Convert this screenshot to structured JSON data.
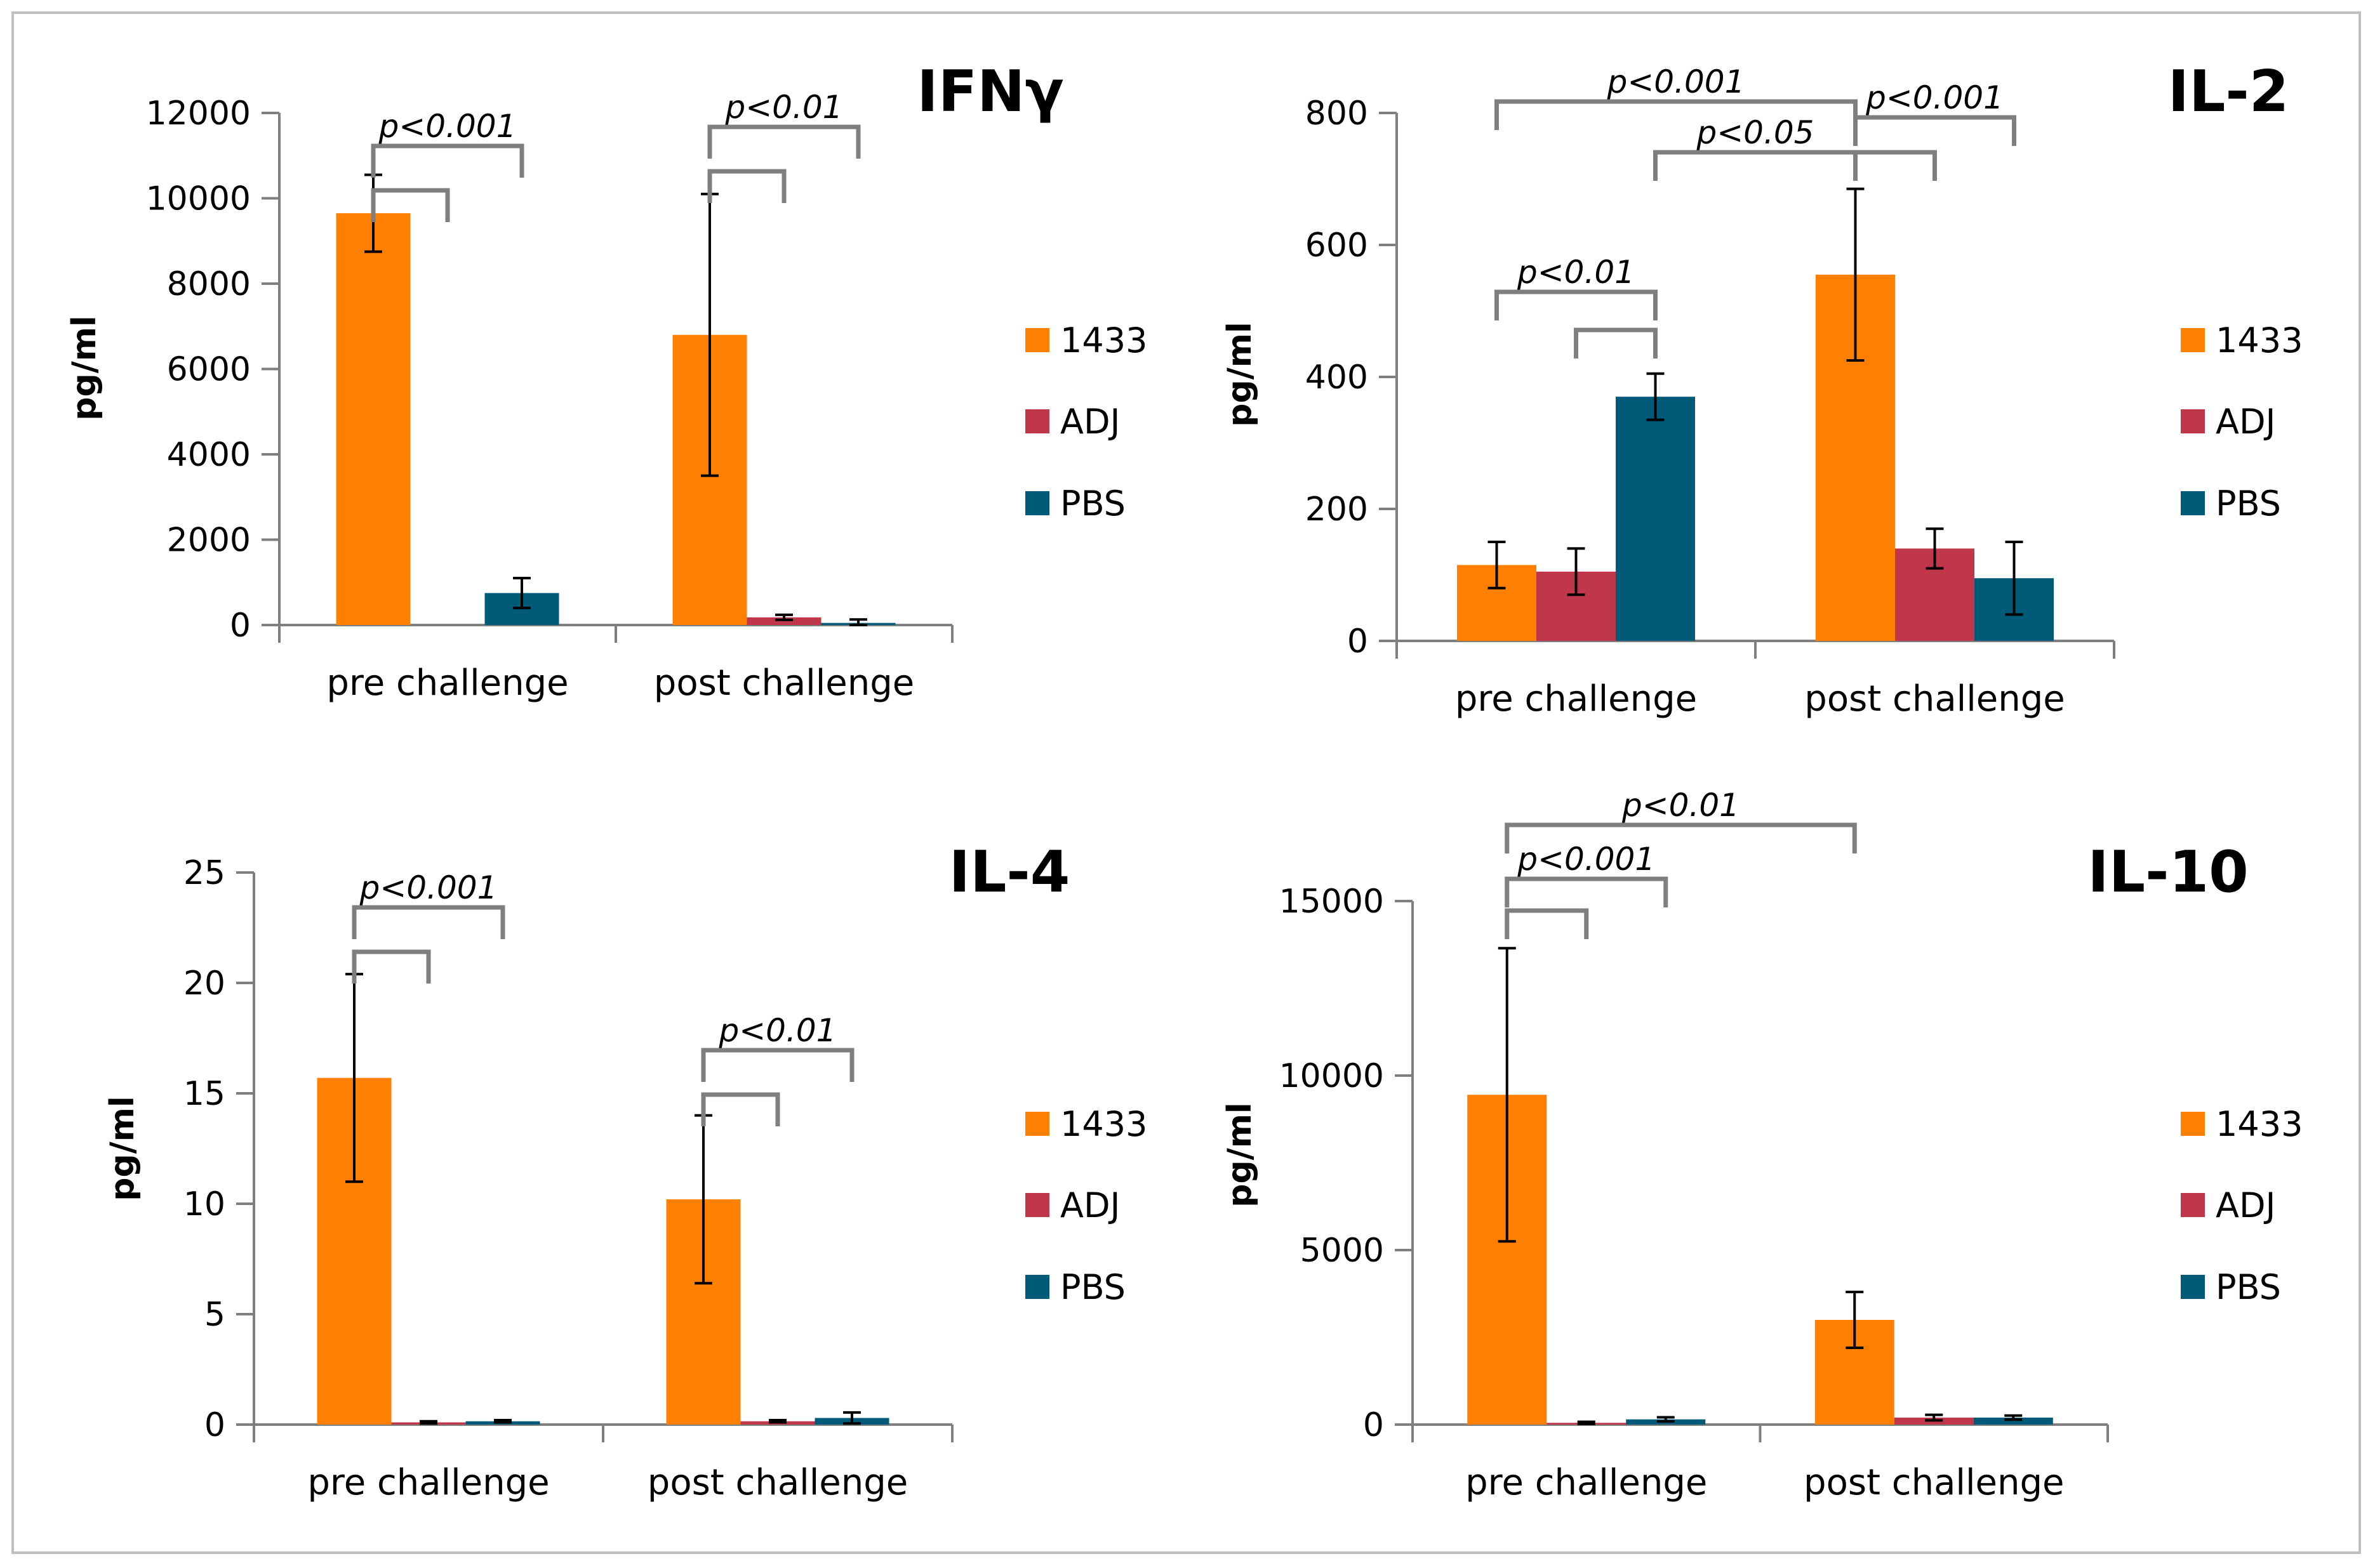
{
  "colors": {
    "1433": "#ff8000",
    "ADJ": "#c0364a",
    "PBS": "#005a78",
    "axis": "#7f7f7f",
    "bracket": "#7f7f7f"
  },
  "chart_data": [
    {
      "type": "bar",
      "title": "IFNγ",
      "ylabel": "pg/ml",
      "categories": [
        "pre challenge",
        "post challenge"
      ],
      "ylim": [
        0,
        12000
      ],
      "yticks": [
        "0",
        "2000",
        "4000",
        "6000",
        "8000",
        "10000",
        "12000"
      ],
      "series": [
        {
          "name": "1433",
          "values": [
            9650,
            6800
          ],
          "errors": [
            900,
            3300
          ]
        },
        {
          "name": "ADJ",
          "values": [
            0,
            180
          ],
          "errors": [
            0,
            60
          ]
        },
        {
          "name": "PBS",
          "values": [
            750,
            50
          ],
          "errors": [
            350,
            80
          ]
        }
      ],
      "annotations": [
        {
          "text": "p<0.001",
          "category": 0,
          "from": 0,
          "to": [
            1,
            2
          ]
        },
        {
          "text": "p<0.01",
          "category": 1,
          "from": 0,
          "to": [
            1,
            2
          ]
        }
      ]
    },
    {
      "type": "bar",
      "title": "IL-2",
      "ylabel": "pg/ml",
      "categories": [
        "pre challenge",
        "post challenge"
      ],
      "ylim": [
        0,
        800
      ],
      "yticks": [
        "0",
        "200",
        "400",
        "600",
        "800"
      ],
      "series": [
        {
          "name": "1433",
          "values": [
            115,
            555
          ],
          "errors": [
            35,
            130
          ]
        },
        {
          "name": "ADJ",
          "values": [
            105,
            140
          ],
          "errors": [
            35,
            30
          ]
        },
        {
          "name": "PBS",
          "values": [
            370,
            95
          ],
          "errors": [
            35,
            55
          ]
        }
      ],
      "annotations": [
        {
          "text": "p<0.01",
          "note": "pre 1433/ADJ vs PBS"
        },
        {
          "text": "p<0.001",
          "note": "pre 1433 vs post 1433"
        },
        {
          "text": "p<0.05",
          "note": "pre PBS vs post 1433"
        },
        {
          "text": "p<0.001",
          "note": "post 1433 vs ADJ/PBS"
        }
      ]
    },
    {
      "type": "bar",
      "title": "IL-4",
      "ylabel": "pg/ml",
      "categories": [
        "pre challenge",
        "post challenge"
      ],
      "ylim": [
        0,
        25
      ],
      "yticks": [
        "0",
        "5",
        "10",
        "15",
        "20",
        "25"
      ],
      "series": [
        {
          "name": "1433",
          "values": [
            15.7,
            10.2
          ],
          "errors": [
            4.7,
            3.8
          ]
        },
        {
          "name": "ADJ",
          "values": [
            0.1,
            0.15
          ],
          "errors": [
            0.05,
            0.05
          ]
        },
        {
          "name": "PBS",
          "values": [
            0.15,
            0.3
          ],
          "errors": [
            0.05,
            0.25
          ]
        }
      ],
      "annotations": [
        {
          "text": "p<0.001",
          "category": 0,
          "from": 0,
          "to": [
            1,
            2
          ]
        },
        {
          "text": "p<0.01",
          "category": 1,
          "from": 0,
          "to": [
            1,
            2
          ]
        }
      ]
    },
    {
      "type": "bar",
      "title": "IL-10",
      "ylabel": "pg/ml",
      "categories": [
        "pre challenge",
        "post challenge"
      ],
      "ylim": [
        0,
        15000
      ],
      "yticks": [
        "0",
        "5000",
        "10000",
        "15000"
      ],
      "series": [
        {
          "name": "1433",
          "values": [
            9450,
            3000
          ],
          "errors": [
            4200,
            800
          ]
        },
        {
          "name": "ADJ",
          "values": [
            50,
            200
          ],
          "errors": [
            30,
            80
          ]
        },
        {
          "name": "PBS",
          "values": [
            150,
            200
          ],
          "errors": [
            60,
            60
          ]
        }
      ],
      "annotations": [
        {
          "text": "p<0.001",
          "category": 0,
          "from": 0,
          "to": [
            1,
            2
          ]
        },
        {
          "text": "p<0.01",
          "note": "pre 1433 vs post 1433"
        }
      ]
    }
  ]
}
